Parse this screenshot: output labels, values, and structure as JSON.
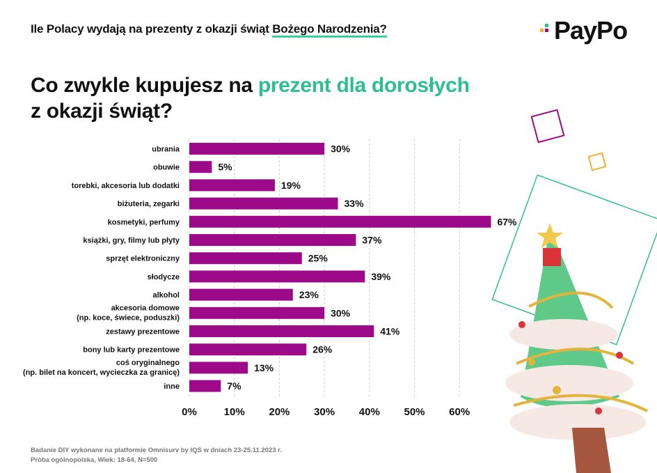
{
  "header": {
    "title_pre": "Ile Polacy wydają na prezenty z okazji świąt ",
    "title_highlight": "Bożego Narodzenia?"
  },
  "logo": {
    "text": "PayPo"
  },
  "question": {
    "line1_pre": "Co zwykle kupujesz na ",
    "line1_highlight": "prezent dla dorosłych",
    "line2": "z okazji świąt?"
  },
  "colors": {
    "bar": "#9c0a8a",
    "accent_green": "#2ebf8e",
    "grid": "#c8c8c8",
    "logo_square_1": "#2ebf8e",
    "logo_square_2": "#f2b233",
    "logo_square_3": "#9c0a8a"
  },
  "chart_data": {
    "type": "bar",
    "orientation": "horizontal",
    "categories": [
      [
        "ubrania"
      ],
      [
        "obuwie"
      ],
      [
        "torebki, akcesoria lub dodatki"
      ],
      [
        "biżuteria, zegarki"
      ],
      [
        "kosmetyki, perfumy"
      ],
      [
        "książki, gry, filmy lub płyty"
      ],
      [
        "sprzęt elektroniczny"
      ],
      [
        "słodycze"
      ],
      [
        "alkohol"
      ],
      [
        "akcesoria domowe",
        "(np. koce, świece, poduszki)"
      ],
      [
        "zestawy prezentowe"
      ],
      [
        "bony lub karty prezentowe"
      ],
      [
        "coś oryginalnego",
        "(np. bilet na koncert, wycieczka za granicę)"
      ],
      [
        "inne"
      ]
    ],
    "values": [
      30,
      5,
      19,
      33,
      67,
      37,
      25,
      39,
      23,
      30,
      41,
      26,
      13,
      7
    ],
    "value_labels": [
      "30%",
      "5%",
      "19%",
      "33%",
      "67%",
      "37%",
      "25%",
      "39%",
      "23%",
      "30%",
      "41%",
      "26%",
      "13%",
      "7%"
    ],
    "xlim": [
      0,
      60
    ],
    "x_ticks": [
      0,
      10,
      20,
      30,
      40,
      50,
      60
    ],
    "x_tick_labels": [
      "0%",
      "10%",
      "20%",
      "30%",
      "40%",
      "50%",
      "60%"
    ],
    "grid": "vertical dashed"
  },
  "footnote": {
    "line1": "Badanie DIY wykonane na platformie Omnisurv by IQS w dniach 23-25.11.2023 r.",
    "line2": "Próba ogólnopolska, Wiek: 18-64, N=500"
  }
}
